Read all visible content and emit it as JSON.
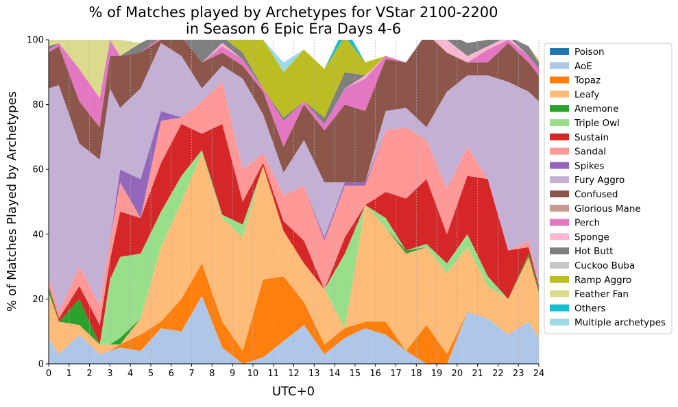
{
  "chart_data": {
    "type": "area",
    "title_line1": "% of Matches played by Archetypes for VStar 2100-2200",
    "title_line2": "in Season 6 Epic Era Days 4-6",
    "xlabel": "UTC+0",
    "ylabel": "% of Matches Played by Archetypes",
    "xlim": [
      0,
      24
    ],
    "ylim": [
      0,
      100
    ],
    "xticks": [
      "0",
      "1",
      "2",
      "3",
      "4",
      "5",
      "6",
      "7",
      "8",
      "9",
      "10",
      "11",
      "12",
      "13",
      "14",
      "15",
      "16",
      "17",
      "18",
      "19",
      "20",
      "21",
      "22",
      "23",
      "24"
    ],
    "yticks": [
      "0",
      "20",
      "40",
      "60",
      "80",
      "100"
    ],
    "x": [
      0,
      0.5,
      1.5,
      2.5,
      3,
      3.5,
      4.5,
      5.5,
      6.5,
      7.5,
      8.5,
      9.5,
      10.5,
      11.5,
      12.5,
      13.5,
      14.5,
      15.5,
      16.5,
      17.5,
      18.5,
      19.5,
      20.5,
      21.5,
      22.5,
      23.5,
      24
    ],
    "legend_position": "right",
    "grid": "vertical dotted",
    "series": [
      {
        "name": "Poison",
        "color": "#1f77b4",
        "values": [
          0,
          0,
          0,
          0,
          0,
          0,
          0,
          0,
          0,
          0,
          0,
          0,
          0,
          0,
          0,
          0,
          0,
          0,
          0,
          0,
          0,
          0,
          0,
          0,
          0,
          0,
          0
        ]
      },
      {
        "name": "AoE",
        "color": "#aec7e8",
        "values": [
          8,
          3,
          9,
          3,
          4,
          5,
          4,
          11,
          10,
          21,
          5,
          0,
          2,
          7,
          12,
          3,
          8,
          11,
          9,
          4,
          0,
          0,
          16,
          14,
          9,
          13,
          8
        ]
      },
      {
        "name": "Topaz",
        "color": "#ff7f0e",
        "values": [
          0,
          0,
          0,
          0,
          0,
          1,
          5,
          2,
          10,
          10,
          8,
          4,
          24,
          20,
          7,
          3,
          3,
          2,
          4,
          0,
          12,
          3,
          0,
          0,
          0,
          0,
          0
        ]
      },
      {
        "name": "Leafy",
        "color": "#ffbb78",
        "values": [
          14,
          10,
          3,
          3,
          2,
          0,
          5,
          23,
          30,
          34,
          32,
          35,
          35,
          14,
          12,
          17,
          0,
          36,
          29,
          30,
          24,
          25,
          20,
          10,
          11,
          20,
          14
        ]
      },
      {
        "name": "Anemone",
        "color": "#2ca02c",
        "values": [
          2,
          0,
          8,
          0,
          0,
          2,
          0,
          0,
          0,
          0,
          0,
          0,
          0,
          0,
          0,
          0,
          0,
          0,
          0,
          1,
          0,
          0,
          0,
          0,
          0,
          1,
          1
        ]
      },
      {
        "name": "Triple Owl",
        "color": "#98df8a",
        "values": [
          0,
          0,
          0,
          0,
          20,
          25,
          20,
          11,
          8,
          1,
          1,
          4,
          0,
          0,
          0,
          0,
          23,
          0,
          3,
          0,
          1,
          3,
          4,
          3,
          0,
          0,
          0
        ]
      },
      {
        "name": "Sustain",
        "color": "#d62728",
        "values": [
          0,
          1,
          4,
          6,
          6,
          14,
          11,
          15,
          16,
          5,
          28,
          7,
          1,
          3,
          7,
          0,
          5,
          0,
          8,
          16,
          20,
          9,
          18,
          30,
          15,
          2,
          1
        ]
      },
      {
        "name": "Sandal",
        "color": "#ff9896",
        "values": [
          3,
          2,
          6,
          6,
          6,
          9,
          0,
          13,
          2,
          10,
          13,
          10,
          3,
          8,
          17,
          15,
          16,
          6,
          19,
          22,
          12,
          14,
          9,
          0,
          0,
          2,
          0
        ]
      },
      {
        "name": "Spikes",
        "color": "#9467bd",
        "values": [
          0,
          0,
          0,
          0,
          0,
          4,
          12,
          3,
          0,
          0,
          0,
          0,
          0,
          0,
          0,
          1,
          1,
          1,
          0,
          0,
          0,
          0,
          0,
          0,
          0,
          0,
          0
        ]
      },
      {
        "name": "Fury Aggro",
        "color": "#c5b0d5",
        "values": [
          58,
          70,
          38,
          45,
          47,
          19,
          28,
          21,
          19,
          4,
          5,
          28,
          12,
          7,
          14,
          17,
          0,
          0,
          6,
          6,
          4,
          30,
          22,
          32,
          52,
          46,
          57
        ]
      },
      {
        "name": "Confused",
        "color": "#8c564b",
        "values": [
          11,
          12,
          13,
          10,
          10,
          16,
          11,
          1,
          6,
          8,
          4,
          4,
          7,
          8,
          11,
          16,
          24,
          22,
          16,
          14,
          29,
          12,
          4,
          4,
          12,
          9,
          8
        ]
      },
      {
        "name": "Glorious Mane",
        "color": "#c49c94",
        "values": [
          0,
          0,
          0,
          0,
          0,
          0,
          0,
          0,
          0,
          0,
          0,
          0,
          0,
          0,
          0,
          0,
          0,
          0,
          0,
          0,
          0,
          0,
          0,
          0,
          0,
          0,
          0
        ]
      },
      {
        "name": "Perch",
        "color": "#e377c2",
        "values": [
          1,
          1,
          10,
          9,
          5,
          0,
          0,
          1,
          0,
          0,
          2,
          2,
          1,
          8,
          1,
          2,
          5,
          10,
          1,
          0,
          0,
          0,
          0,
          4,
          1,
          2,
          2
        ]
      },
      {
        "name": "Sponge",
        "color": "#f7b6d2",
        "values": [
          0,
          0,
          0,
          0,
          0,
          0,
          0,
          0,
          0,
          0,
          1,
          0,
          0,
          0,
          0,
          0,
          0,
          1,
          0,
          0,
          0,
          4,
          2,
          1,
          1,
          0,
          0
        ]
      },
      {
        "name": "Hot Butt",
        "color": "#7f7f7f",
        "values": [
          1,
          0,
          0,
          0,
          0,
          0,
          3,
          1,
          1,
          7,
          2,
          2,
          0,
          1,
          0,
          2,
          5,
          0,
          0,
          0,
          0,
          2,
          4,
          2,
          0,
          3,
          2
        ]
      },
      {
        "name": "Cuckoo Buba",
        "color": "#c7c7c7",
        "values": [
          0,
          0,
          0,
          0,
          0,
          0,
          0,
          0,
          0,
          0,
          0,
          0,
          0,
          0,
          0,
          0,
          0,
          0,
          0,
          0,
          0,
          0,
          0,
          0,
          0,
          0,
          0
        ]
      },
      {
        "name": "Ramp Aggro",
        "color": "#bcbd22",
        "values": [
          0,
          0,
          0,
          0,
          0,
          0,
          0,
          0,
          0,
          0,
          0,
          4,
          15,
          14,
          16,
          15,
          11,
          4,
          0,
          0,
          0,
          0,
          0,
          0,
          0,
          0,
          0
        ]
      },
      {
        "name": "Feather Fan",
        "color": "#dbdb8d",
        "values": [
          2,
          1,
          9,
          18,
          0,
          5,
          0,
          0,
          5,
          0,
          0,
          0,
          0,
          0,
          0,
          0,
          0,
          0,
          0,
          0,
          0,
          0,
          0,
          0,
          0,
          0,
          1
        ]
      },
      {
        "name": "Others",
        "color": "#17becf",
        "values": [
          0,
          0,
          0,
          0,
          0,
          0,
          0,
          0,
          0,
          0,
          0,
          0,
          0,
          0,
          0,
          0,
          3,
          0,
          0,
          0,
          0,
          0,
          0,
          0,
          0,
          0,
          0
        ]
      },
      {
        "name": "Multiple archetypes",
        "color": "#9edae5",
        "values": [
          0,
          0,
          0,
          0,
          0,
          0,
          0,
          0,
          0,
          0,
          0,
          0,
          0,
          3,
          0,
          0,
          0,
          0,
          0,
          0,
          0,
          0,
          0,
          0,
          0,
          0,
          0
        ]
      }
    ]
  }
}
